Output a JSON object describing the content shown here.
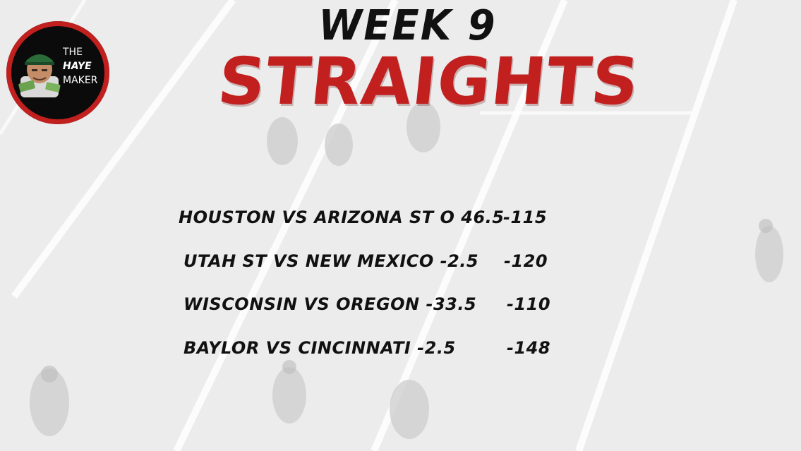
{
  "logo": {
    "line1": "THE",
    "line2": "HAYE",
    "line3": "MAKER",
    "accent_color": "#c21f1f",
    "icon": "avatar-with-cash-icon"
  },
  "header": {
    "week": "WEEK 9",
    "title": "STRAIGHTS"
  },
  "picks": [
    {
      "game": "HOUSTON VS ARIZONA ST O 46.5",
      "odds": "-115"
    },
    {
      "game": "UTAH ST VS NEW MEXICO -2.5",
      "odds": "-120"
    },
    {
      "game": "WISCONSIN VS OREGON -33.5",
      "odds": "-110"
    },
    {
      "game": "BAYLOR VS CINCINNATI -2.5",
      "odds": "-148"
    }
  ]
}
